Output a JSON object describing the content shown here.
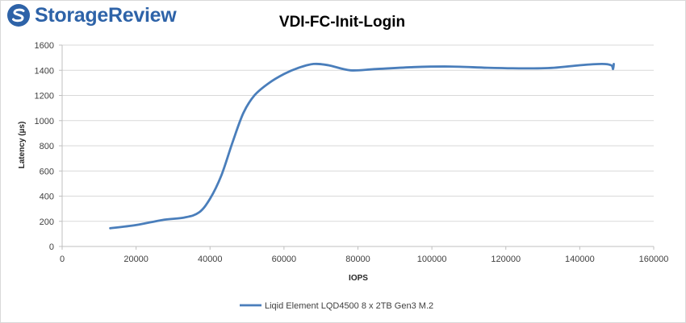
{
  "brand": {
    "name": "StorageReview",
    "color": "#2e63a8",
    "icon": "storagereview-logo-icon"
  },
  "chart_data": {
    "type": "line",
    "title": "VDI-FC-Init-Login",
    "xlabel": "IOPS",
    "ylabel": "Latency (µs)",
    "xlim": [
      0,
      160000
    ],
    "ylim": [
      0,
      1600
    ],
    "xticks": [
      0,
      20000,
      40000,
      60000,
      80000,
      100000,
      120000,
      140000,
      160000
    ],
    "yticks": [
      0,
      200,
      400,
      600,
      800,
      1000,
      1200,
      1400,
      1600
    ],
    "grid": true,
    "legend_position": "bottom",
    "series": [
      {
        "name": "Liqid Element LQD4500 8 x 2TB Gen3 M.2",
        "color": "#4a7ebb",
        "x": [
          13000,
          20000,
          27000,
          33000,
          37000,
          40000,
          43000,
          46000,
          49000,
          52000,
          56000,
          60000,
          64000,
          68000,
          72000,
          78000,
          85000,
          95000,
          105000,
          115000,
          125000,
          133000,
          140000,
          146000,
          148500,
          149000,
          149200
        ],
        "y": [
          145,
          170,
          210,
          230,
          270,
          380,
          560,
          820,
          1060,
          1200,
          1300,
          1370,
          1420,
          1450,
          1440,
          1400,
          1410,
          1425,
          1430,
          1420,
          1415,
          1420,
          1440,
          1450,
          1440,
          1410,
          1450
        ]
      }
    ]
  }
}
